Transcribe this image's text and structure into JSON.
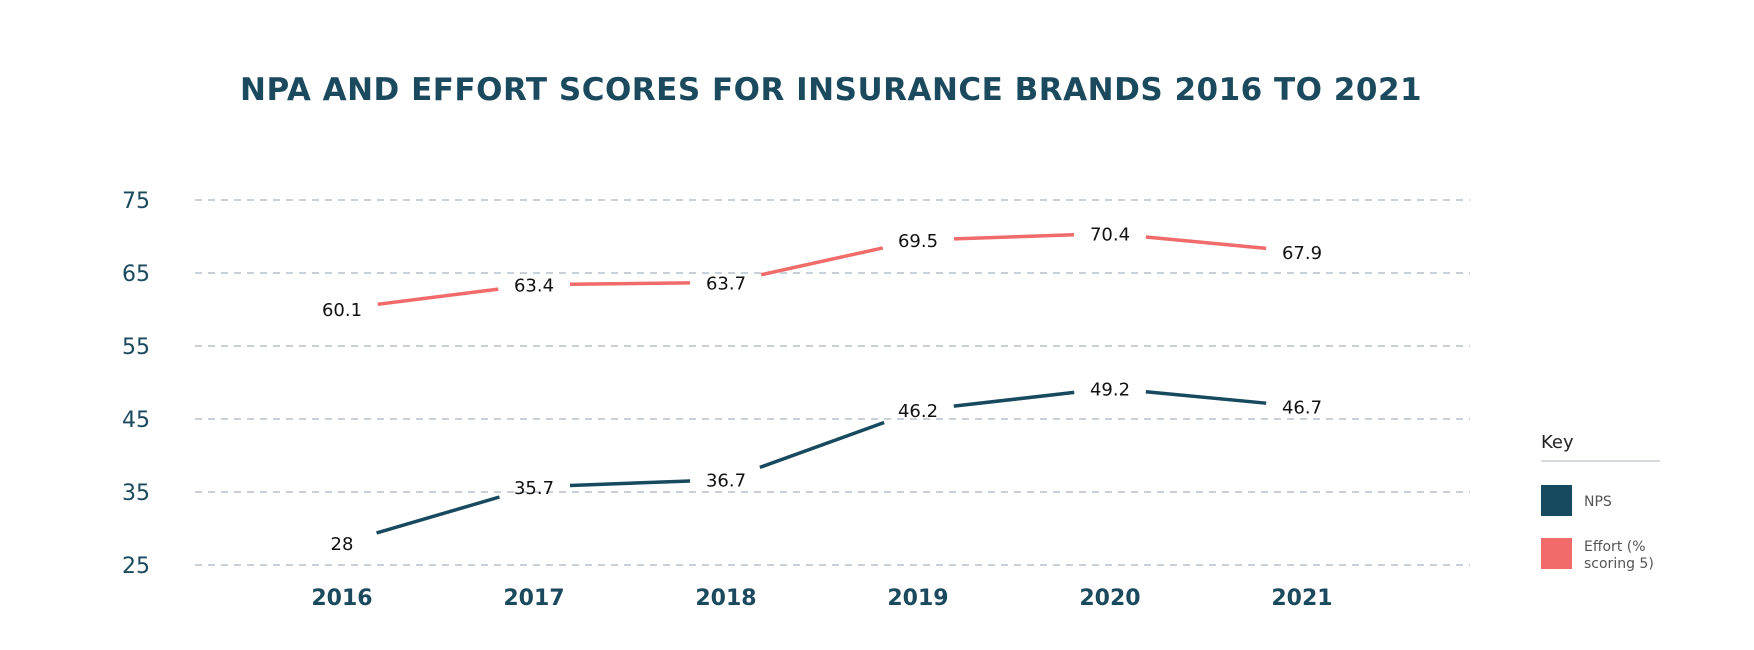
{
  "chart_data": {
    "type": "line",
    "title": "NPA AND EFFORT SCORES FOR INSURANCE BRANDS 2016 TO 2021",
    "x": [
      "2016",
      "2017",
      "2018",
      "2019",
      "2020",
      "2021"
    ],
    "ylim": [
      25,
      75
    ],
    "yticks": [
      25,
      35,
      45,
      55,
      65,
      75
    ],
    "grid": true,
    "legend_position": "right",
    "legend_title": "Key",
    "series": [
      {
        "name": "NPS",
        "color": "#174a5e",
        "values": [
          28,
          35.7,
          36.7,
          46.2,
          49.2,
          46.7
        ]
      },
      {
        "name": "Effort (% scoring 5)",
        "legend_lines": [
          "Effort (%",
          "scoring 5)"
        ],
        "color": "#f26b6b",
        "values": [
          60.1,
          63.4,
          63.7,
          69.5,
          70.4,
          67.9
        ]
      }
    ]
  }
}
